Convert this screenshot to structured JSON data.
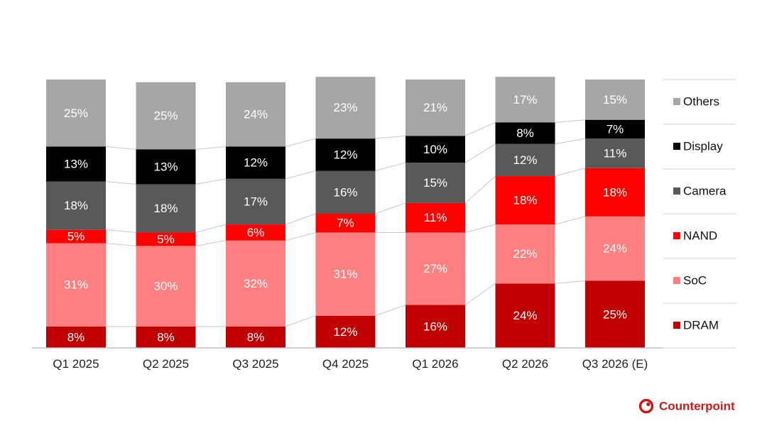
{
  "chart_data": {
    "type": "bar",
    "stacked": true,
    "normalized": true,
    "categories": [
      "Q1 2025",
      "Q2 2025",
      "Q3 2025",
      "Q4 2025",
      "Q1 2026",
      "Q2 2026",
      "Q3 2026 (E)"
    ],
    "series": [
      {
        "name": "DRAM",
        "color": "#c00000",
        "label_color": "#ffffff",
        "values": [
          8,
          8,
          8,
          12,
          16,
          24,
          25
        ]
      },
      {
        "name": "SoC",
        "color": "#ff8080",
        "label_color": "#ffffff",
        "values": [
          31,
          30,
          32,
          31,
          27,
          22,
          24
        ]
      },
      {
        "name": "NAND",
        "color": "#ff0000",
        "label_color": "#ffffff",
        "values": [
          5,
          5,
          6,
          7,
          11,
          18,
          18
        ]
      },
      {
        "name": "Camera",
        "color": "#595959",
        "label_color": "#ffffff",
        "values": [
          18,
          18,
          17,
          16,
          15,
          12,
          11
        ]
      },
      {
        "name": "Display",
        "color": "#000000",
        "label_color": "#ffffff",
        "values": [
          13,
          13,
          12,
          12,
          10,
          8,
          7
        ]
      },
      {
        "name": "Others",
        "color": "#a6a6a6",
        "label_color": "#ffffff",
        "values": [
          25,
          25,
          24,
          23,
          21,
          17,
          15
        ]
      }
    ],
    "value_suffix": "%",
    "ylim": [
      0,
      100
    ],
    "grid": false,
    "connector_lines": true,
    "legend_position": "right",
    "legend_order": [
      "Others",
      "Display",
      "Camera",
      "NAND",
      "SoC",
      "DRAM"
    ],
    "title": "",
    "xlabel": "",
    "ylabel": ""
  },
  "brand": {
    "name": "Counterpoint",
    "color": "#cc1818",
    "icon": "counterpoint-logo-icon"
  }
}
